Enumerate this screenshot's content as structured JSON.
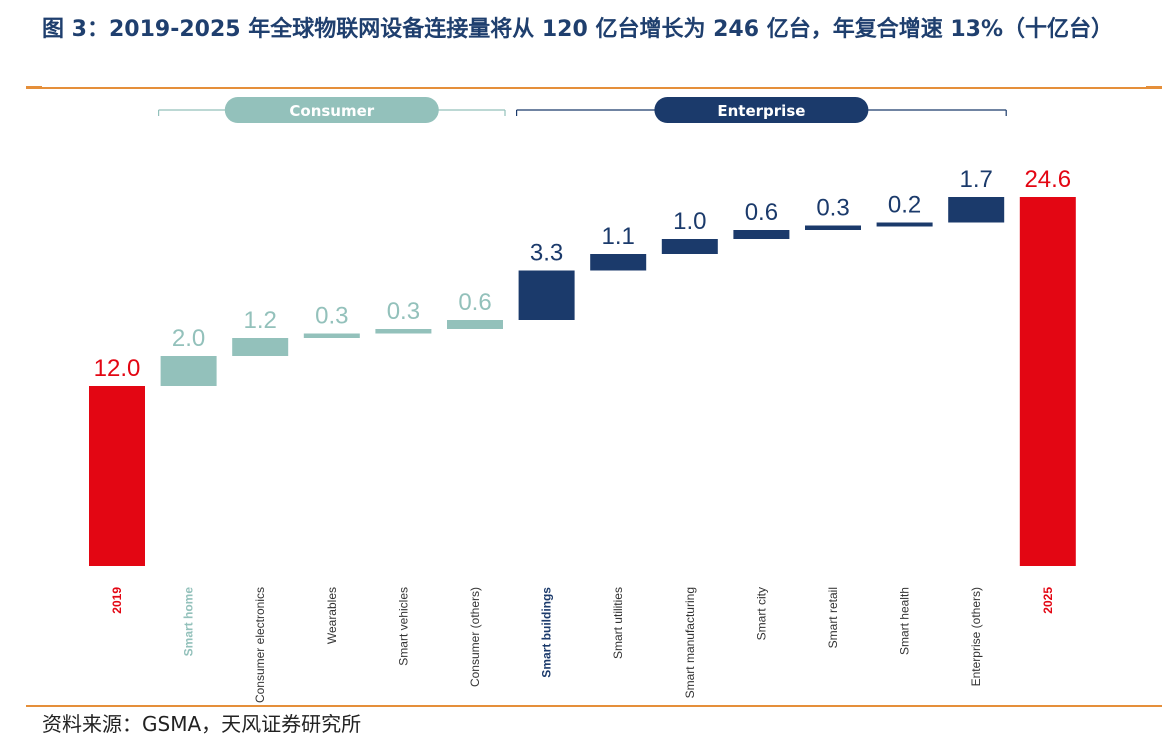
{
  "title": "图 3：2019-2025 年全球物联网设备连接量将从 120 亿台增长为 246 亿台，年复合增速 13%（十亿台）",
  "source": "资料来源：GSMA，天风证券研究所",
  "groups": {
    "consumer": "Consumer",
    "enterprise": "Enterprise"
  },
  "colors": {
    "total": "#e30613",
    "consumer": "#93c1bb",
    "enterprise": "#1b3a6b",
    "rule": "#e58f3a"
  },
  "chart_data": {
    "type": "bar",
    "subtype": "waterfall",
    "ylim": [
      0,
      26
    ],
    "categories": [
      "2019",
      "Smart home",
      "Consumer electronics",
      "Wearables",
      "Smart vehicles",
      "Consumer (others)",
      "Smart buildings",
      "Smart utilities",
      "Smart manufacturing",
      "Smart city",
      "Smart retail",
      "Smart health",
      "Enterprise (others)",
      "2025"
    ],
    "values": [
      12.0,
      2.0,
      1.2,
      0.3,
      0.3,
      0.6,
      3.3,
      1.1,
      1.0,
      0.6,
      0.3,
      0.2,
      1.7,
      24.6
    ],
    "value_labels": [
      "12.0",
      "2.0",
      "1.2",
      "0.3",
      "0.3",
      "0.6",
      "3.3",
      "1.1",
      "1.0",
      "0.6",
      "0.3",
      "0.2",
      "1.7",
      "24.6"
    ],
    "kinds": [
      "total",
      "consumer",
      "consumer",
      "consumer",
      "consumer",
      "consumer",
      "enterprise",
      "enterprise",
      "enterprise",
      "enterprise",
      "enterprise",
      "enterprise",
      "enterprise",
      "total"
    ],
    "bold_labels": [
      true,
      true,
      false,
      false,
      false,
      false,
      true,
      false,
      false,
      false,
      false,
      false,
      false,
      true
    ]
  }
}
